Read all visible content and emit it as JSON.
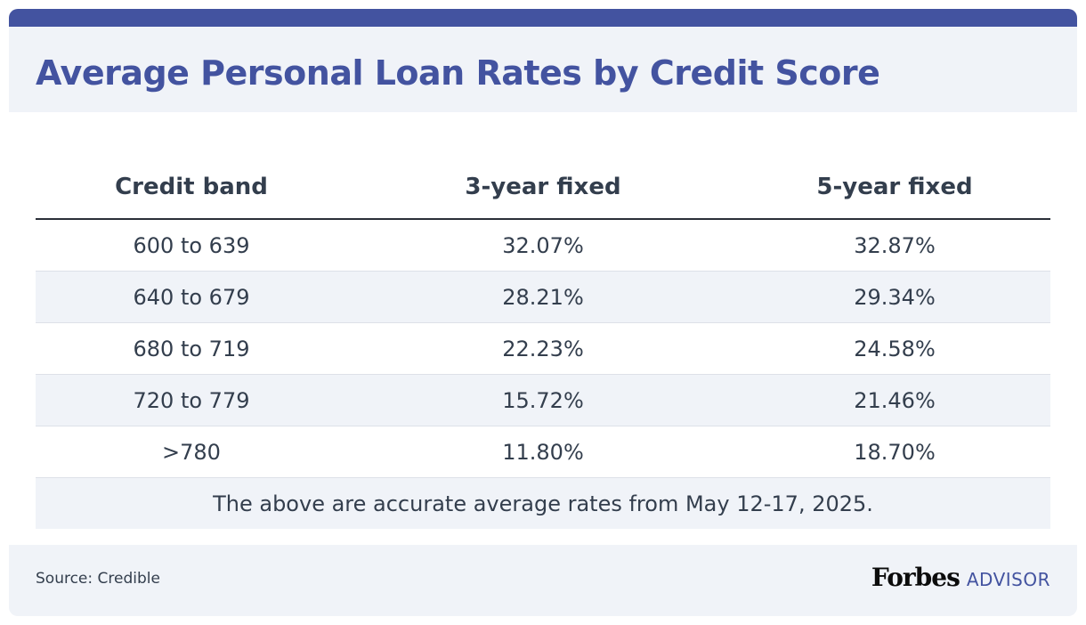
{
  "header": {
    "title": "Average Personal Loan Rates by Credit Score"
  },
  "chart_data": {
    "type": "table",
    "columns": [
      "Credit band",
      "3-year fixed",
      "5-year fixed"
    ],
    "rows": [
      [
        "600 to 639",
        "32.07%",
        "32.87%"
      ],
      [
        "640 to 679",
        "28.21%",
        "29.34%"
      ],
      [
        "680 to 719",
        "22.23%",
        "24.58%"
      ],
      [
        "720 to 779",
        "15.72%",
        "21.46%"
      ],
      [
        ">780",
        "11.80%",
        "18.70%"
      ]
    ],
    "note": "The above are accurate average rates from May 12-17, 2025."
  },
  "footer": {
    "source": "Source: Credible",
    "logo_wordmark": "Forbes",
    "logo_suffix": "ADVISOR"
  },
  "colors": {
    "brand": "#4353a0",
    "header_bg": "#f0f3f8",
    "text": "#333e4d"
  }
}
